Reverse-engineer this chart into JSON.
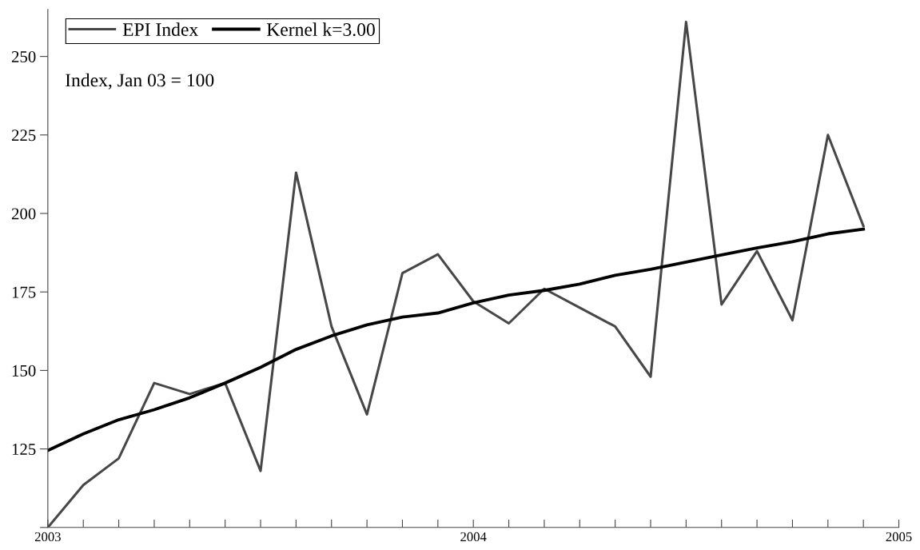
{
  "chart_data": {
    "type": "line",
    "x": [
      "2003-01",
      "2003-02",
      "2003-03",
      "2003-04",
      "2003-05",
      "2003-06",
      "2003-07",
      "2003-08",
      "2003-09",
      "2003-10",
      "2003-11",
      "2003-12",
      "2004-01",
      "2004-02",
      "2004-03",
      "2004-04",
      "2004-05",
      "2004-06",
      "2004-07",
      "2004-08",
      "2004-09",
      "2004-10",
      "2004-11",
      "2004-12"
    ],
    "series": [
      {
        "name": "EPI Index",
        "color": "#474747",
        "values": [
          100,
          113.5,
          122,
          146,
          142.5,
          146,
          118,
          213,
          164,
          136,
          181,
          187,
          172,
          165,
          176,
          170,
          164,
          148,
          261,
          171,
          188,
          166,
          225,
          196
        ]
      },
      {
        "name": "Kernel k=3.00",
        "color": "#000000",
        "values": [
          124.5,
          129.8,
          134.3,
          137.5,
          141.3,
          146,
          151,
          156.7,
          161,
          164.5,
          167,
          168.3,
          171.5,
          174,
          175.5,
          177.5,
          180.3,
          182.2,
          184.5,
          186.8,
          189,
          191,
          193.5,
          195
        ]
      }
    ],
    "annotations": [
      "Index, Jan 03 = 100"
    ],
    "xlim": [
      "2003-01",
      "2005-01"
    ],
    "xticks": [
      {
        "value": "2003",
        "label": "2003"
      },
      {
        "value": "2003-02",
        "label": null
      },
      {
        "value": "2003-03",
        "label": null
      },
      {
        "value": "2003-04",
        "label": null
      },
      {
        "value": "2003-05",
        "label": null
      },
      {
        "value": "2003-06",
        "label": null
      },
      {
        "value": "2003-07",
        "label": null
      },
      {
        "value": "2003-08",
        "label": null
      },
      {
        "value": "2003-09",
        "label": null
      },
      {
        "value": "2003-10",
        "label": null
      },
      {
        "value": "2003-11",
        "label": null
      },
      {
        "value": "2003-12",
        "label": null
      },
      {
        "value": "2004",
        "label": "2004"
      },
      {
        "value": "2004-02",
        "label": null
      },
      {
        "value": "2004-03",
        "label": null
      },
      {
        "value": "2004-04",
        "label": null
      },
      {
        "value": "2004-05",
        "label": null
      },
      {
        "value": "2004-06",
        "label": null
      },
      {
        "value": "2004-07",
        "label": null
      },
      {
        "value": "2004-08",
        "label": null
      },
      {
        "value": "2004-09",
        "label": null
      },
      {
        "value": "2004-10",
        "label": null
      },
      {
        "value": "2004-11",
        "label": null
      },
      {
        "value": "2004-12",
        "label": null
      },
      {
        "value": "2005",
        "label": "2005"
      }
    ],
    "ylim": [
      100,
      265
    ],
    "yticks": [
      {
        "value": 100,
        "label": null
      },
      125,
      150,
      175,
      200,
      225,
      250
    ],
    "legend": "top left",
    "grid": false,
    "marker": "none",
    "line_style": "solid"
  }
}
